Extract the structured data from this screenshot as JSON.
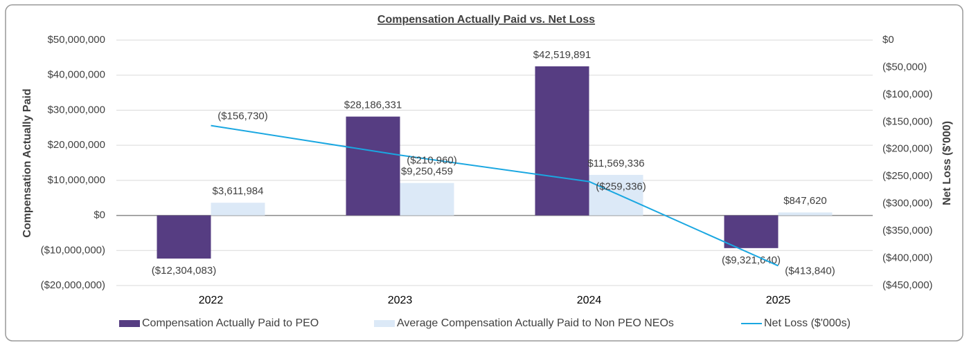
{
  "chart_data": {
    "type": "bar-line",
    "title": "Compensation Actually Paid vs. Net Loss",
    "y_label": "Compensation Actually Paid",
    "y2_label": "Net Loss ($'000)",
    "categories": [
      "2022",
      "2023",
      "2024",
      "2025"
    ],
    "ylim": [
      -20000000,
      50000000
    ],
    "yticks": [
      {
        "value": -20000000,
        "label": "($20,000,000)"
      },
      {
        "value": -10000000,
        "label": "($10,000,000)"
      },
      {
        "value": 0,
        "label": "$0"
      },
      {
        "value": 10000000,
        "label": "$10,000,000"
      },
      {
        "value": 20000000,
        "label": "$20,000,000"
      },
      {
        "value": 30000000,
        "label": "$30,000,000"
      },
      {
        "value": 40000000,
        "label": "$40,000,000"
      },
      {
        "value": 50000000,
        "label": "$50,000,000"
      }
    ],
    "y2lim": [
      -450000,
      0
    ],
    "y2ticks": [
      {
        "value": -450000,
        "label": "($450,000)"
      },
      {
        "value": -400000,
        "label": "($400,000)"
      },
      {
        "value": -350000,
        "label": "($350,000)"
      },
      {
        "value": -300000,
        "label": "($300,000)"
      },
      {
        "value": -250000,
        "label": "($250,000)"
      },
      {
        "value": -200000,
        "label": "($200,000)"
      },
      {
        "value": -150000,
        "label": "($150,000)"
      },
      {
        "value": -100000,
        "label": "($100,000)"
      },
      {
        "value": -50000,
        "label": "($50,000)"
      },
      {
        "value": 0,
        "label": "$0"
      }
    ],
    "grid": true,
    "negative_color": "#e00000",
    "series": [
      {
        "name": "Compensation Actually Paid to PEO",
        "type": "bar",
        "color": "#563d82",
        "values": [
          -12304083,
          28186331,
          42519891,
          -9321640
        ],
        "value_labels": [
          "($12,304,083)",
          "$28,186,331",
          "$42,519,891",
          "($9,321,640)"
        ]
      },
      {
        "name": "Average Compensation Actually Paid to Non PEO NEOs",
        "type": "bar",
        "color": "#dce9f7",
        "values": [
          3611984,
          9250459,
          11569336,
          847620
        ],
        "value_labels": [
          "$3,611,984",
          "$9,250,459",
          "$11,569,336",
          "$847,620"
        ]
      },
      {
        "name": "Net Loss ($'000s)",
        "type": "line",
        "axis": "y2",
        "color": "#1aa7e1",
        "values": [
          -156730,
          -210960,
          -259336,
          -413840
        ],
        "value_labels": [
          "($156,730)",
          "($210,960)",
          "($259,336)",
          "($413,840)"
        ]
      }
    ]
  }
}
